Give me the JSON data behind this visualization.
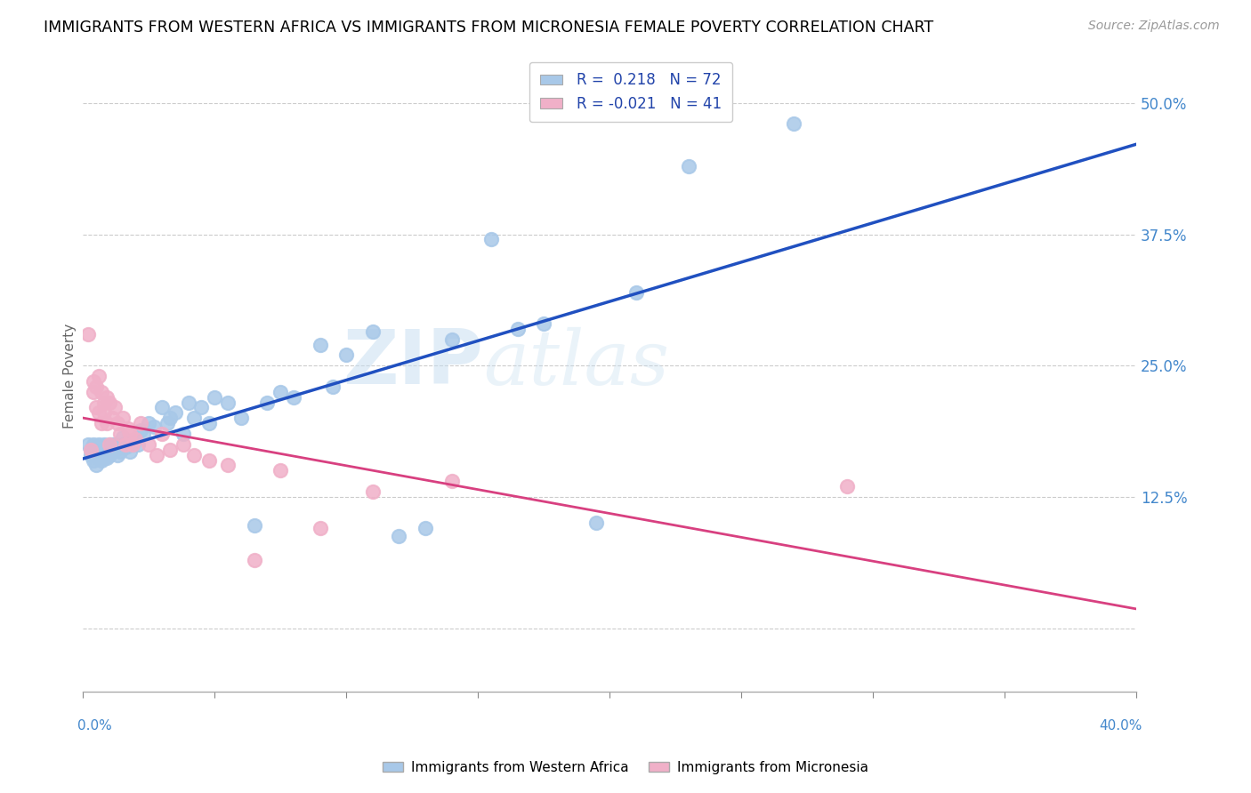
{
  "title": "IMMIGRANTS FROM WESTERN AFRICA VS IMMIGRANTS FROM MICRONESIA FEMALE POVERTY CORRELATION CHART",
  "source": "Source: ZipAtlas.com",
  "ylabel": "Female Poverty",
  "yticks": [
    0.0,
    0.125,
    0.25,
    0.375,
    0.5
  ],
  "ytick_labels": [
    "",
    "12.5%",
    "25.0%",
    "37.5%",
    "50.0%"
  ],
  "xticks": [
    0.0,
    0.05,
    0.1,
    0.15,
    0.2,
    0.25,
    0.3,
    0.35,
    0.4
  ],
  "xmin": 0.0,
  "xmax": 0.4,
  "ymin": -0.06,
  "ymax": 0.54,
  "legend_r1": "R =  0.218",
  "legend_n1": "N = 72",
  "legend_r2": "R = -0.021",
  "legend_n2": "N = 41",
  "label1": "Immigrants from Western Africa",
  "label2": "Immigrants from Micronesia",
  "scatter_color1": "#a8c8e8",
  "scatter_color2": "#f0b0c8",
  "line_color1": "#2050c0",
  "line_color2": "#d84080",
  "watermark_zip": "ZIP",
  "watermark_atlas": "atlas",
  "background_color": "#ffffff",
  "wa_x": [
    0.002,
    0.003,
    0.003,
    0.004,
    0.004,
    0.005,
    0.005,
    0.005,
    0.006,
    0.006,
    0.006,
    0.007,
    0.007,
    0.007,
    0.008,
    0.008,
    0.008,
    0.009,
    0.009,
    0.009,
    0.01,
    0.01,
    0.01,
    0.011,
    0.011,
    0.012,
    0.012,
    0.013,
    0.013,
    0.014,
    0.015,
    0.015,
    0.016,
    0.017,
    0.018,
    0.019,
    0.02,
    0.021,
    0.022,
    0.023,
    0.025,
    0.027,
    0.03,
    0.032,
    0.033,
    0.035,
    0.038,
    0.04,
    0.042,
    0.045,
    0.048,
    0.05,
    0.055,
    0.06,
    0.065,
    0.07,
    0.075,
    0.08,
    0.09,
    0.095,
    0.1,
    0.11,
    0.12,
    0.13,
    0.14,
    0.155,
    0.165,
    0.175,
    0.195,
    0.21,
    0.23,
    0.27
  ],
  "wa_y": [
    0.175,
    0.165,
    0.17,
    0.175,
    0.16,
    0.165,
    0.155,
    0.172,
    0.168,
    0.162,
    0.175,
    0.16,
    0.172,
    0.165,
    0.168,
    0.162,
    0.175,
    0.165,
    0.17,
    0.162,
    0.172,
    0.165,
    0.175,
    0.168,
    0.175,
    0.17,
    0.175,
    0.165,
    0.172,
    0.168,
    0.175,
    0.182,
    0.172,
    0.178,
    0.168,
    0.175,
    0.18,
    0.175,
    0.188,
    0.185,
    0.195,
    0.192,
    0.21,
    0.195,
    0.2,
    0.205,
    0.185,
    0.215,
    0.2,
    0.21,
    0.195,
    0.22,
    0.215,
    0.2,
    0.098,
    0.215,
    0.225,
    0.22,
    0.27,
    0.23,
    0.26,
    0.282,
    0.088,
    0.095,
    0.275,
    0.37,
    0.285,
    0.29,
    0.1,
    0.32,
    0.44,
    0.48
  ],
  "mic_x": [
    0.002,
    0.003,
    0.004,
    0.004,
    0.005,
    0.005,
    0.006,
    0.006,
    0.007,
    0.007,
    0.008,
    0.008,
    0.009,
    0.009,
    0.01,
    0.01,
    0.011,
    0.012,
    0.013,
    0.014,
    0.015,
    0.016,
    0.017,
    0.018,
    0.019,
    0.02,
    0.022,
    0.025,
    0.028,
    0.03,
    0.033,
    0.038,
    0.042,
    0.048,
    0.055,
    0.065,
    0.075,
    0.09,
    0.11,
    0.14,
    0.29
  ],
  "mic_y": [
    0.28,
    0.17,
    0.225,
    0.235,
    0.23,
    0.21,
    0.24,
    0.205,
    0.225,
    0.195,
    0.205,
    0.215,
    0.22,
    0.195,
    0.215,
    0.175,
    0.2,
    0.21,
    0.195,
    0.185,
    0.2,
    0.175,
    0.19,
    0.185,
    0.175,
    0.18,
    0.195,
    0.175,
    0.165,
    0.185,
    0.17,
    0.175,
    0.165,
    0.16,
    0.155,
    0.065,
    0.15,
    0.095,
    0.13,
    0.14,
    0.135
  ]
}
